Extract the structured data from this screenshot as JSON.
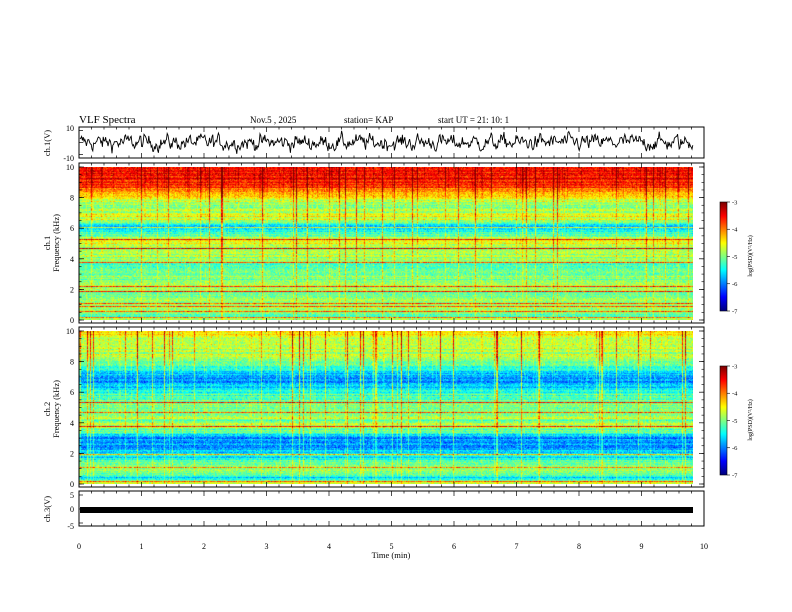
{
  "header": {
    "title": "VLF Spectra",
    "date": "Nov.5  , 2025",
    "station": "station= KAP",
    "start": "start  UT  =   21: 10: 1"
  },
  "chart_data": [
    {
      "type": "line",
      "name": "ch1-waveform",
      "ylabel": "ch.1(V)",
      "ylim": [
        -10,
        10
      ],
      "yticks": [
        "10",
        "-10"
      ],
      "xlim": [
        0,
        9.83
      ],
      "description_free": true
    },
    {
      "type": "heatmap",
      "name": "ch1-spectrogram",
      "ylabel": "ch.1\nFrequency  (kHz)",
      "ylabel_line1": "ch.1",
      "ylabel_line2": "Frequency  (kHz)",
      "ylim": [
        0,
        10
      ],
      "yticks": [
        "0",
        "2",
        "4",
        "6",
        "8",
        "10"
      ],
      "xlim": [
        0,
        9.83
      ],
      "colorbar": {
        "label": "log(PSD)(V²/Hz)",
        "range": [
          -7,
          -3
        ],
        "ticks": [
          "-3",
          "-4",
          "-5",
          "-6",
          "-7"
        ]
      },
      "profile_kHz_log": [
        [
          0.0,
          -4.6
        ],
        [
          0.3,
          -5.2
        ],
        [
          0.8,
          -4.8
        ],
        [
          1.2,
          -5.0
        ],
        [
          1.8,
          -4.9
        ],
        [
          2.2,
          -4.9
        ],
        [
          2.8,
          -5.0
        ],
        [
          3.4,
          -5.2
        ],
        [
          4.0,
          -4.9
        ],
        [
          4.6,
          -4.7
        ],
        [
          5.2,
          -4.6
        ],
        [
          5.8,
          -5.6
        ],
        [
          6.2,
          -5.6
        ],
        [
          6.6,
          -4.6
        ],
        [
          7.0,
          -4.8
        ],
        [
          7.5,
          -5.0
        ],
        [
          8.2,
          -4.2
        ],
        [
          9.0,
          -3.7
        ],
        [
          10.0,
          -3.5
        ]
      ],
      "lines_kHz": [
        0.12,
        0.55,
        0.85,
        1.05,
        1.85,
        2.15,
        3.72,
        4.65,
        5.25,
        6.05
      ]
    },
    {
      "type": "heatmap",
      "name": "ch2-spectrogram",
      "ylabel_line1": "ch.2",
      "ylabel_line2": "Frequency  (kHz)",
      "ylim": [
        0,
        10
      ],
      "yticks": [
        "0",
        "2",
        "4",
        "6",
        "8",
        "10"
      ],
      "xlim": [
        0,
        9.83
      ],
      "colorbar": {
        "label": "log(PSD)(V²/Hz)",
        "range": [
          -7,
          -3
        ],
        "ticks": [
          "-3",
          "-4",
          "-5",
          "-6",
          "-7"
        ]
      },
      "profile_kHz_log": [
        [
          0.0,
          -4.5
        ],
        [
          0.3,
          -5.5
        ],
        [
          0.8,
          -5.0
        ],
        [
          1.5,
          -5.2
        ],
        [
          2.0,
          -5.7
        ],
        [
          2.6,
          -6.0
        ],
        [
          3.0,
          -5.9
        ],
        [
          3.5,
          -5.0
        ],
        [
          4.0,
          -4.9
        ],
        [
          4.6,
          -5.0
        ],
        [
          5.2,
          -5.0
        ],
        [
          5.8,
          -5.2
        ],
        [
          6.4,
          -5.8
        ],
        [
          6.9,
          -5.9
        ],
        [
          7.4,
          -5.6
        ],
        [
          8.0,
          -5.0
        ],
        [
          8.6,
          -4.8
        ],
        [
          9.3,
          -4.7
        ],
        [
          10.0,
          -4.5
        ]
      ],
      "lines_kHz": [
        0.1,
        1.02,
        1.9,
        3.72,
        4.65,
        5.3
      ]
    },
    {
      "type": "line",
      "name": "ch3-waveform",
      "ylabel": "ch.3(V)",
      "ylim": [
        -5,
        5
      ],
      "yticks": [
        "5",
        "0",
        "-5"
      ],
      "xlim": [
        0,
        9.83
      ],
      "level": 0
    }
  ],
  "x_axis": {
    "label": "Time  (min)",
    "ticks": [
      "0",
      "1",
      "2",
      "3",
      "4",
      "5",
      "6",
      "7",
      "8",
      "9",
      "10"
    ],
    "range": [
      0,
      10
    ]
  }
}
